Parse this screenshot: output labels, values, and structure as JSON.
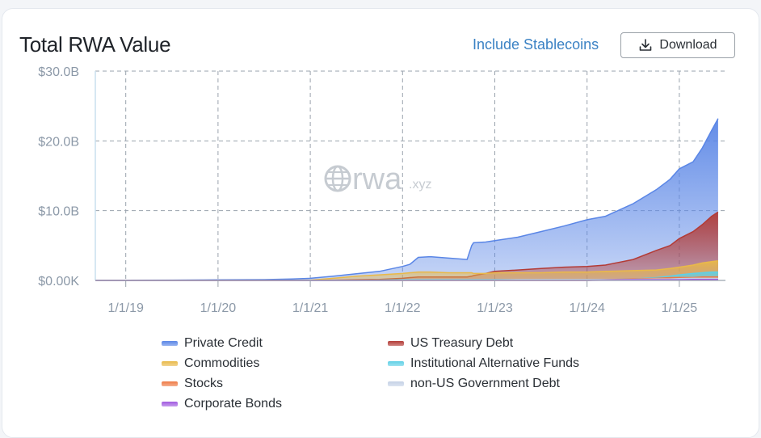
{
  "header": {
    "title": "Total RWA Value",
    "include_stablecoins": "Include Stablecoins",
    "download_label": "Download"
  },
  "icons": {
    "download": "download-icon",
    "globe": "globe-icon"
  },
  "watermark": {
    "brand": "rwa",
    "suffix": ".xyz"
  },
  "chart_data": {
    "type": "area",
    "stacked": false,
    "title": "Total RWA Value",
    "xlabel": "",
    "ylabel": "",
    "x": [
      2018.67,
      2019.0,
      2019.5,
      2020.0,
      2020.5,
      2020.8,
      2021.0,
      2021.25,
      2021.5,
      2021.75,
      2022.0,
      2022.08,
      2022.17,
      2022.3,
      2022.5,
      2022.7,
      2022.75,
      2022.77,
      2022.9,
      2023.0,
      2023.25,
      2023.5,
      2023.75,
      2024.0,
      2024.2,
      2024.5,
      2024.75,
      2024.9,
      2025.0,
      2025.15,
      2025.25,
      2025.35,
      2025.42
    ],
    "ylim": [
      0,
      30
    ],
    "y_ticks": [
      "$0.00K",
      "$10.0B",
      "$20.0B",
      "$30.0B"
    ],
    "x_ticks": [
      "1/1/19",
      "1/1/20",
      "1/1/21",
      "1/1/22",
      "1/1/23",
      "1/1/24",
      "1/1/25"
    ],
    "x_tick_values": [
      2019,
      2020,
      2021,
      2022,
      2023,
      2024,
      2025
    ],
    "grid": true,
    "legend_position": "bottom",
    "series": [
      {
        "name": "Private Credit",
        "color": "#5a86e6",
        "values": [
          0.02,
          0.03,
          0.05,
          0.08,
          0.12,
          0.2,
          0.3,
          0.6,
          0.95,
          1.3,
          2.0,
          2.3,
          3.3,
          3.4,
          3.2,
          3.0,
          5.0,
          5.4,
          5.5,
          5.7,
          6.2,
          7.0,
          7.8,
          8.7,
          9.2,
          11.0,
          13.0,
          14.5,
          16.0,
          17.0,
          19.0,
          21.5,
          23.2
        ]
      },
      {
        "name": "US Treasury Debt",
        "color": "#b33b36",
        "values": [
          0,
          0,
          0,
          0,
          0,
          0,
          0.02,
          0.05,
          0.1,
          0.15,
          0.3,
          0.4,
          0.5,
          0.5,
          0.5,
          0.5,
          0.6,
          0.7,
          1.0,
          1.3,
          1.5,
          1.7,
          1.9,
          2.0,
          2.2,
          3.0,
          4.3,
          5.0,
          6.0,
          7.0,
          8.0,
          9.2,
          9.8
        ]
      },
      {
        "name": "Commodities",
        "color": "#e9b949",
        "values": [
          0,
          0,
          0,
          0,
          0,
          0.02,
          0.05,
          0.3,
          0.6,
          0.8,
          1.0,
          1.1,
          1.2,
          1.2,
          1.1,
          1.1,
          1.1,
          1.0,
          1.0,
          1.1,
          1.1,
          1.1,
          1.2,
          1.2,
          1.3,
          1.4,
          1.5,
          1.7,
          1.9,
          2.2,
          2.5,
          2.7,
          2.8
        ]
      },
      {
        "name": "Institutional Alternative Funds",
        "color": "#5fd0e6",
        "values": [
          0,
          0,
          0,
          0,
          0,
          0,
          0,
          0,
          0,
          0.05,
          0.1,
          0.1,
          0.1,
          0.1,
          0.1,
          0.1,
          0.1,
          0.1,
          0.1,
          0.1,
          0.1,
          0.1,
          0.1,
          0.1,
          0.1,
          0.2,
          0.4,
          0.6,
          0.8,
          1.0,
          1.1,
          1.2,
          1.2
        ]
      },
      {
        "name": "Stocks",
        "color": "#ee7a45",
        "values": [
          0,
          0,
          0,
          0,
          0,
          0,
          0,
          0,
          0,
          0,
          0,
          0,
          0,
          0,
          0,
          0,
          0,
          0,
          0,
          0,
          0,
          0,
          0,
          0,
          0.1,
          0.2,
          0.3,
          0.4,
          0.4,
          0.4,
          0.5,
          0.5,
          0.5
        ]
      },
      {
        "name": "non-US Government Debt",
        "color": "#c5d2e6",
        "values": [
          0,
          0,
          0,
          0,
          0,
          0,
          0,
          0,
          0,
          0,
          0.05,
          0.05,
          0.05,
          0.05,
          0.05,
          0.05,
          0.05,
          0.05,
          0.05,
          0.05,
          0.1,
          0.1,
          0.1,
          0.1,
          0.1,
          0.15,
          0.2,
          0.2,
          0.25,
          0.3,
          0.3,
          0.3,
          0.3
        ]
      },
      {
        "name": "Corporate Bonds",
        "color": "#a15be0",
        "values": [
          0,
          0,
          0,
          0,
          0,
          0,
          0,
          0,
          0,
          0,
          0,
          0,
          0,
          0,
          0,
          0,
          0,
          0,
          0,
          0,
          0,
          0,
          0,
          0,
          0.05,
          0.1,
          0.1,
          0.1,
          0.1,
          0.15,
          0.15,
          0.15,
          0.15
        ]
      }
    ]
  }
}
